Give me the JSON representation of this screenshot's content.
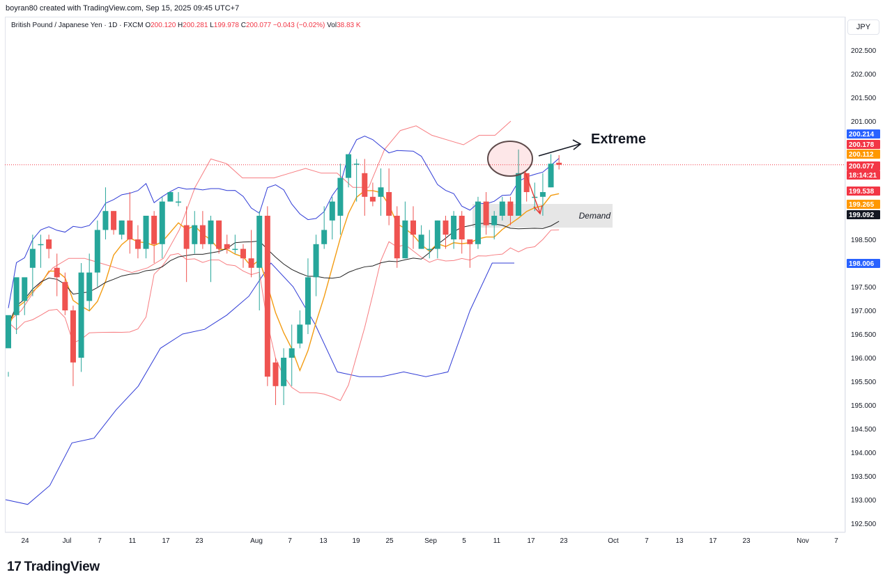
{
  "caption": "boyran80 created with TradingView.com, Sep 15, 2025 09:45 UTC+7",
  "legend": {
    "symbol": "British Pound / Japanese Yen · 1D · FXCM",
    "o_label": "O",
    "o": "200.120",
    "h_label": "H",
    "h": "200.281",
    "l_label": "L",
    "l": "199.978",
    "c_label": "C",
    "c": "200.077",
    "change": "−0.043 (−0.02%)",
    "vol_label": "Vol",
    "vol": "38.83 K"
  },
  "currency": "JPY",
  "footer_brand": "TradingView",
  "annotations": {
    "extreme": "Extreme",
    "demand": "Demand"
  },
  "colors": {
    "up": "#26a69a",
    "down": "#ef5350",
    "bb_outer": "#2f3bd6",
    "bb_inner": "#f77c80",
    "ma_orange": "#f39c12",
    "ma_black": "#222222",
    "price_line": "#f23645"
  },
  "chart_data": {
    "type": "candlestick",
    "title": "British Pound / Japanese Yen · 1D · FXCM",
    "ylim": [
      192.3,
      203.0
    ],
    "y_ticks": [
      "202.500",
      "202.000",
      "201.500",
      "201.000",
      "200.500",
      "200.000",
      "199.500",
      "199.000",
      "198.500",
      "198.000",
      "197.500",
      "197.000",
      "196.500",
      "196.000",
      "195.500",
      "195.000",
      "194.500",
      "194.000",
      "193.500",
      "193.000",
      "192.500"
    ],
    "x_ticks": [
      "24",
      "Jul",
      "7",
      "11",
      "17",
      "23",
      "Aug",
      "7",
      "13",
      "19",
      "25",
      "Sep",
      "5",
      "11",
      "17",
      "23",
      "Oct",
      "7",
      "13",
      "17",
      "23",
      "Nov",
      "7"
    ],
    "candles": [
      [
        196.2,
        196.9,
        195.7,
        195.6
      ],
      [
        196.9,
        197.7,
        197.0,
        196.5
      ],
      [
        197.2,
        197.7,
        197.3,
        196.9
      ],
      [
        197.9,
        198.3,
        198.6,
        197.3
      ],
      [
        198.4,
        198.4,
        198.6,
        197.9
      ],
      [
        198.5,
        198.3,
        198.6,
        198.1
      ],
      [
        197.9,
        197.7,
        198.2,
        197.3
      ],
      [
        197.6,
        197.0,
        197.8,
        196.9
      ],
      [
        197.0,
        195.9,
        197.1,
        195.4
      ],
      [
        196.0,
        197.8,
        198.0,
        195.7
      ],
      [
        197.2,
        197.8,
        198.2,
        197.0
      ],
      [
        197.8,
        198.7,
        198.9,
        197.5
      ],
      [
        198.7,
        199.1,
        199.6,
        198.5
      ],
      [
        199.1,
        198.7,
        199.1,
        198.6
      ],
      [
        198.6,
        198.9,
        198.9,
        198.5
      ],
      [
        198.9,
        198.5,
        199.5,
        198.2
      ],
      [
        198.5,
        198.3,
        198.8,
        198.1
      ],
      [
        198.3,
        199.0,
        199.0,
        198.1
      ],
      [
        199.0,
        198.4,
        199.1,
        198.0
      ],
      [
        198.4,
        199.3,
        199.4,
        198.1
      ],
      [
        199.3,
        199.5,
        199.5,
        199.3
      ],
      [
        199.3,
        199.3,
        199.5,
        199.2
      ],
      [
        198.8,
        198.3,
        199.2,
        197.6
      ],
      [
        198.4,
        198.8,
        199.1,
        198.2
      ],
      [
        198.8,
        198.4,
        199.1,
        198.3
      ],
      [
        198.4,
        198.9,
        199.0,
        197.6
      ],
      [
        198.9,
        198.3,
        198.9,
        198.2
      ],
      [
        198.4,
        198.3,
        198.6,
        198.2
      ],
      [
        198.3,
        198.3,
        198.6,
        198.2
      ],
      [
        198.3,
        198.1,
        198.4,
        197.9
      ],
      [
        198.1,
        197.9,
        198.7,
        197.7
      ],
      [
        197.9,
        199.0,
        199.1,
        197.0
      ],
      [
        199.0,
        195.6,
        199.2,
        195.4
      ],
      [
        195.9,
        195.4,
        196.0,
        195.0
      ],
      [
        195.4,
        196.0,
        196.2,
        195.0
      ],
      [
        196.0,
        196.2,
        196.7,
        195.4
      ],
      [
        196.3,
        196.7,
        197.0,
        196.2
      ],
      [
        196.7,
        197.7,
        198.1,
        196.5
      ],
      [
        197.7,
        198.4,
        198.6,
        197.3
      ],
      [
        198.4,
        198.7,
        199.2,
        198.3
      ],
      [
        198.9,
        199.3,
        199.4,
        198.5
      ],
      [
        199.0,
        199.8,
        200.1,
        198.6
      ],
      [
        199.8,
        200.3,
        200.3,
        199.6
      ],
      [
        200.1,
        200.1,
        200.2,
        199.3
      ],
      [
        199.9,
        199.4,
        200.2,
        199.0
      ],
      [
        199.4,
        199.3,
        199.7,
        199.2
      ],
      [
        199.4,
        199.6,
        200.0,
        199.0
      ],
      [
        199.5,
        199.0,
        200.0,
        198.8
      ],
      [
        199.0,
        198.1,
        199.2,
        197.9
      ],
      [
        198.1,
        198.9,
        199.3,
        198.1
      ],
      [
        198.9,
        198.6,
        199.2,
        198.3
      ],
      [
        198.3,
        198.6,
        198.8,
        198.3
      ],
      [
        198.3,
        198.3,
        198.7,
        198.1
      ],
      [
        198.3,
        198.9,
        198.9,
        198.1
      ],
      [
        198.9,
        198.6,
        199.0,
        198.3
      ],
      [
        198.5,
        199.0,
        199.1,
        198.3
      ],
      [
        199.0,
        198.5,
        199.1,
        198.2
      ],
      [
        198.5,
        198.4,
        198.5,
        197.9
      ],
      [
        198.4,
        199.3,
        199.4,
        198.3
      ],
      [
        199.3,
        198.8,
        199.5,
        198.6
      ],
      [
        198.8,
        199.0,
        199.1,
        198.5
      ],
      [
        199.0,
        199.3,
        199.4,
        198.9
      ],
      [
        199.3,
        199.0,
        199.4,
        198.8
      ],
      [
        199.0,
        199.9,
        200.4,
        199.0
      ],
      [
        199.9,
        199.5,
        199.9,
        199.3
      ],
      [
        199.4,
        199.4,
        199.7,
        199.1
      ],
      [
        199.4,
        199.5,
        199.9,
        199.0
      ],
      [
        199.6,
        200.1,
        200.3,
        199.6
      ],
      [
        200.12,
        200.077,
        200.281,
        199.978
      ]
    ],
    "bb_outer_upper": [
      196.7,
      197.0,
      197.5,
      197.9,
      198.1,
      198.1,
      198.0,
      197.9,
      197.8,
      197.9,
      198.1,
      198.7,
      199.6,
      200.2,
      200.1,
      199.8,
      199.8,
      199.8,
      199.9,
      200.0,
      199.9,
      199.9,
      199.6,
      199.6,
      200.4,
      200.8,
      200.9,
      200.7,
      200.6,
      200.5,
      200.7,
      200.7,
      201.0
    ],
    "bb_outer_lower": [
      193.0,
      192.9,
      193.3,
      194.2,
      194.3,
      194.9,
      195.4,
      196.2,
      196.5,
      196.6,
      196.9,
      197.3,
      198.0,
      197.5,
      196.7,
      195.7,
      195.6,
      195.6,
      195.7,
      195.6,
      195.7,
      197.0,
      198.0,
      198.0
    ],
    "annot_price_line": 200.077,
    "price_tags": [
      {
        "label": "200.214",
        "color": "#2962ff"
      },
      {
        "label": "200.178",
        "color": "#f23645"
      },
      {
        "label": "200.112",
        "color": "#ff9800"
      },
      {
        "label": "200.077",
        "color": "#f23645"
      },
      {
        "label": "18:14:21",
        "color": "#f23645"
      },
      {
        "label": "199.538",
        "color": "#f23645"
      },
      {
        "label": "199.265",
        "color": "#ff9800"
      },
      {
        "label": "199.092",
        "color": "#131722"
      },
      {
        "label": "198.006",
        "color": "#2962ff"
      }
    ],
    "demand_zone": [
      198.75,
      199.25
    ]
  }
}
